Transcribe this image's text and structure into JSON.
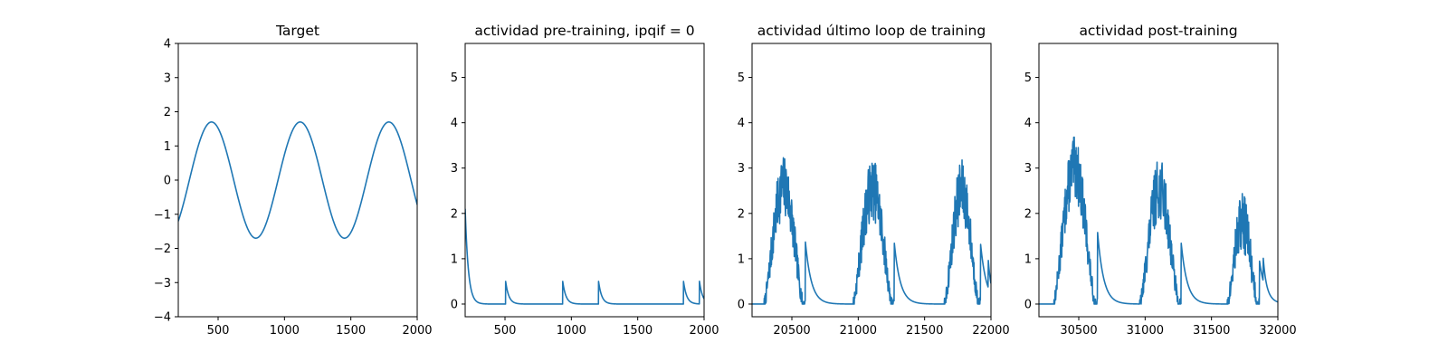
{
  "colors": {
    "series": "#1f77b4",
    "axes": "#000000",
    "background": "#ffffff"
  },
  "chart_data": [
    {
      "type": "line",
      "title": "Target",
      "xlim": [
        200,
        2000
      ],
      "ylim": [
        -4,
        4
      ],
      "xticks": [
        500,
        1000,
        1500,
        2000
      ],
      "yticks": [
        -4,
        -3,
        -2,
        -1,
        0,
        1,
        2,
        3,
        4
      ],
      "grid": false,
      "series": [
        {
          "shape": "sine",
          "amplitude": 1.7,
          "period": 668,
          "phase_deg": 315,
          "start": 200,
          "end": 2000
        }
      ]
    },
    {
      "type": "line",
      "title": "actividad pre-training, ipqif = 0",
      "xlim": [
        200,
        2000
      ],
      "ylim": [
        -0.28,
        5.75
      ],
      "xticks": [
        500,
        1000,
        1500,
        2000
      ],
      "yticks": [
        0,
        1,
        2,
        3,
        4,
        5
      ],
      "grid": false,
      "series": [
        {
          "shape": "spikes",
          "start": 200,
          "end": 2000,
          "decay": 24,
          "spikes": [
            [
              200,
              2.1
            ],
            [
              505,
              0.5
            ],
            [
              935,
              0.5
            ],
            [
              1205,
              0.5
            ],
            [
              1845,
              0.5
            ],
            [
              1965,
              0.5
            ]
          ]
        }
      ]
    },
    {
      "type": "line",
      "title": "actividad último loop de training",
      "xlim": [
        20200,
        22000
      ],
      "ylim": [
        -0.28,
        5.75
      ],
      "xticks": [
        20500,
        21000,
        21500,
        22000
      ],
      "yticks": [
        0,
        1,
        2,
        3,
        4,
        5
      ],
      "grid": false,
      "series": [
        {
          "shape": "bursts",
          "start": 20200,
          "end": 22000,
          "decay": 45,
          "seed": 7,
          "bursts": [
            [
              20290,
              20600,
              2.6
            ],
            [
              20960,
              21270,
              2.55
            ],
            [
              21650,
              21920,
              2.5
            ]
          ],
          "spikes": [
            [
              21980,
              0.6
            ]
          ]
        }
      ]
    },
    {
      "type": "line",
      "title": "actividad post-training",
      "xlim": [
        30200,
        32000
      ],
      "ylim": [
        -0.28,
        5.75
      ],
      "xticks": [
        30500,
        31000,
        31500,
        32000
      ],
      "yticks": [
        0,
        1,
        2,
        3,
        4,
        5
      ],
      "grid": false,
      "series": [
        {
          "shape": "bursts",
          "start": 30200,
          "end": 32000,
          "decay": 45,
          "seed": 13,
          "bursts": [
            [
              30310,
              30640,
              3.0
            ],
            [
              30960,
              31270,
              2.55
            ],
            [
              31620,
              31860,
              1.8
            ]
          ],
          "spikes": [
            [
              31890,
              0.5
            ]
          ]
        }
      ]
    }
  ]
}
